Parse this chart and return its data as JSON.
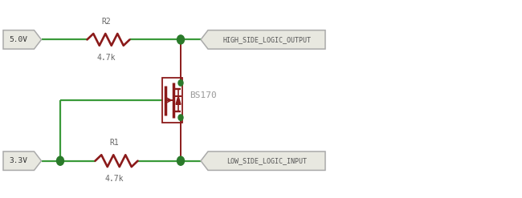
{
  "bg_color": "#ffffff",
  "wire_color": "#3a9a3a",
  "component_color": "#8b1a1a",
  "label_color": "#999999",
  "dark_label_color": "#666666",
  "junction_color": "#2a7a2a",
  "box_edge_color": "#aaaaaa",
  "box_face_color": "#e8e8e0",
  "wire_lw": 1.6,
  "component_lw": 1.4,
  "v5_label": "5.0V",
  "v33_label": "3.3V",
  "r2_label": "R2",
  "r1_label": "R1",
  "r_value": "4.7k",
  "mosfet_label": "BS170",
  "high_label": "HIGH_SIDE_LOGIC_OUTPUT",
  "low_label": "LOW_SIDE_LOGIC_INPUT",
  "xlim": [
    0,
    13
  ],
  "ylim": [
    0,
    4
  ]
}
